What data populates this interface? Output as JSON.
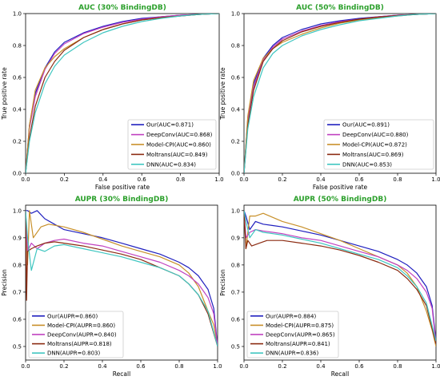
{
  "figure": {
    "panels": [
      {
        "id": "roc30",
        "title": "AUC (30% BindingDB)",
        "xlabel": "False positive rate",
        "ylabel": "True positive rate"
      },
      {
        "id": "roc50",
        "title": "AUC (50% BindingDB)",
        "xlabel": "False positive rate",
        "ylabel": "True positive rate"
      },
      {
        "id": "pr30",
        "title": "AUPR (30% BindingDB)",
        "xlabel": "Recall",
        "ylabel": "Precision"
      },
      {
        "id": "pr50",
        "title": "AUPR (50% BindingDB)",
        "xlabel": "Recall",
        "ylabel": "Precision"
      }
    ]
  },
  "colors": {
    "title": "#2ca02c",
    "our": "#1f1fbf",
    "deepconv": "#c040c0",
    "modelcpi": "#c8902a",
    "moltrans": "#8b2a10",
    "dnn": "#3fc6c0"
  },
  "chart_data": [
    {
      "type": "line",
      "title": "AUC (30% BindingDB)",
      "xlabel": "False positive rate",
      "ylabel": "True positive rate",
      "xlim": [
        0,
        1
      ],
      "ylim": [
        0,
        1
      ],
      "xticks": [
        "0.0",
        "0.2",
        "0.4",
        "0.6",
        "0.8",
        "1.0"
      ],
      "yticks": [
        "0.0",
        "0.2",
        "0.4",
        "0.6",
        "0.8",
        "1.0"
      ],
      "grid": false,
      "legend_position": "bottom-right",
      "series": [
        {
          "name": "Our(AUC=0.871)",
          "color_key": "our",
          "x": [
            0,
            0.02,
            0.05,
            0.1,
            0.15,
            0.2,
            0.3,
            0.4,
            0.5,
            0.6,
            0.7,
            0.8,
            0.9,
            1.0
          ],
          "y": [
            0,
            0.3,
            0.5,
            0.66,
            0.76,
            0.82,
            0.88,
            0.92,
            0.95,
            0.97,
            0.98,
            0.99,
            0.995,
            1.0
          ]
        },
        {
          "name": "DeepConv(AUC=0.868)",
          "color_key": "deepconv",
          "x": [
            0,
            0.02,
            0.05,
            0.1,
            0.15,
            0.2,
            0.3,
            0.4,
            0.5,
            0.6,
            0.7,
            0.8,
            0.9,
            1.0
          ],
          "y": [
            0,
            0.28,
            0.48,
            0.65,
            0.75,
            0.81,
            0.875,
            0.915,
            0.945,
            0.965,
            0.98,
            0.99,
            0.995,
            1.0
          ]
        },
        {
          "name": "Model-CPI(AUC=0.860)",
          "color_key": "modelcpi",
          "x": [
            0,
            0.02,
            0.05,
            0.1,
            0.15,
            0.2,
            0.3,
            0.4,
            0.5,
            0.6,
            0.7,
            0.8,
            0.9,
            1.0
          ],
          "y": [
            0,
            0.3,
            0.52,
            0.66,
            0.73,
            0.78,
            0.85,
            0.9,
            0.935,
            0.96,
            0.975,
            0.985,
            0.995,
            1.0
          ]
        },
        {
          "name": "Moltrans(AUC=0.849)",
          "color_key": "moltrans",
          "x": [
            0,
            0.02,
            0.05,
            0.1,
            0.15,
            0.2,
            0.3,
            0.4,
            0.5,
            0.6,
            0.7,
            0.8,
            0.9,
            1.0
          ],
          "y": [
            0,
            0.22,
            0.42,
            0.6,
            0.7,
            0.77,
            0.85,
            0.9,
            0.935,
            0.96,
            0.975,
            0.985,
            0.995,
            1.0
          ]
        },
        {
          "name": "DNN(AUC=0.834)",
          "color_key": "dnn",
          "x": [
            0,
            0.02,
            0.05,
            0.1,
            0.15,
            0.2,
            0.3,
            0.4,
            0.5,
            0.6,
            0.7,
            0.8,
            0.9,
            1.0
          ],
          "y": [
            0,
            0.2,
            0.38,
            0.56,
            0.67,
            0.74,
            0.82,
            0.88,
            0.92,
            0.95,
            0.97,
            0.985,
            0.995,
            1.0
          ]
        }
      ]
    },
    {
      "type": "line",
      "title": "AUC (50% BindingDB)",
      "xlabel": "False positive rate",
      "ylabel": "True positive rate",
      "xlim": [
        0,
        1
      ],
      "ylim": [
        0,
        1
      ],
      "xticks": [
        "0.0",
        "0.2",
        "0.4",
        "0.6",
        "0.8",
        "1.0"
      ],
      "yticks": [
        "0.0",
        "0.2",
        "0.4",
        "0.6",
        "0.8",
        "1.0"
      ],
      "grid": false,
      "legend_position": "bottom-right",
      "series": [
        {
          "name": "Our(AUC=0.891)",
          "color_key": "our",
          "x": [
            0,
            0.02,
            0.05,
            0.1,
            0.15,
            0.2,
            0.3,
            0.4,
            0.5,
            0.6,
            0.7,
            0.8,
            0.9,
            1.0
          ],
          "y": [
            0,
            0.35,
            0.56,
            0.72,
            0.8,
            0.85,
            0.9,
            0.935,
            0.955,
            0.97,
            0.98,
            0.99,
            0.995,
            1.0
          ]
        },
        {
          "name": "DeepConv(AUC=0.880)",
          "color_key": "deepconv",
          "x": [
            0,
            0.02,
            0.05,
            0.1,
            0.15,
            0.2,
            0.3,
            0.4,
            0.5,
            0.6,
            0.7,
            0.8,
            0.9,
            1.0
          ],
          "y": [
            0,
            0.33,
            0.54,
            0.71,
            0.79,
            0.84,
            0.89,
            0.925,
            0.95,
            0.965,
            0.98,
            0.99,
            0.995,
            1.0
          ]
        },
        {
          "name": "Model-CPI(AUC=0.872)",
          "color_key": "modelcpi",
          "x": [
            0,
            0.02,
            0.05,
            0.1,
            0.15,
            0.2,
            0.3,
            0.4,
            0.5,
            0.6,
            0.7,
            0.8,
            0.9,
            1.0
          ],
          "y": [
            0,
            0.36,
            0.58,
            0.72,
            0.78,
            0.82,
            0.87,
            0.91,
            0.94,
            0.96,
            0.975,
            0.985,
            0.995,
            1.0
          ]
        },
        {
          "name": "Moltrans(AUC=0.869)",
          "color_key": "moltrans",
          "x": [
            0,
            0.02,
            0.05,
            0.1,
            0.15,
            0.2,
            0.3,
            0.4,
            0.5,
            0.6,
            0.7,
            0.8,
            0.9,
            1.0
          ],
          "y": [
            0,
            0.3,
            0.52,
            0.7,
            0.78,
            0.83,
            0.885,
            0.92,
            0.945,
            0.965,
            0.978,
            0.988,
            0.995,
            1.0
          ]
        },
        {
          "name": "DNN(AUC=0.853)",
          "color_key": "dnn",
          "x": [
            0,
            0.02,
            0.05,
            0.1,
            0.15,
            0.2,
            0.3,
            0.4,
            0.5,
            0.6,
            0.7,
            0.8,
            0.9,
            1.0
          ],
          "y": [
            0,
            0.28,
            0.48,
            0.66,
            0.75,
            0.8,
            0.86,
            0.9,
            0.93,
            0.955,
            0.97,
            0.985,
            0.995,
            1.0
          ]
        }
      ]
    },
    {
      "type": "line",
      "title": "AUPR (30% BindingDB)",
      "xlabel": "Recall",
      "ylabel": "Precision",
      "xlim": [
        0,
        1
      ],
      "ylim": [
        0.45,
        1.02
      ],
      "xticks": [
        "0.0",
        "0.2",
        "0.4",
        "0.6",
        "0.8",
        "1.0"
      ],
      "yticks": [
        "0.5",
        "0.6",
        "0.7",
        "0.8",
        "0.9",
        "1.0"
      ],
      "grid": false,
      "legend_position": "bottom-left",
      "series": [
        {
          "name": "Our(AUPR=0.860)",
          "color_key": "our",
          "x": [
            0.0,
            0.01,
            0.03,
            0.06,
            0.1,
            0.15,
            0.2,
            0.3,
            0.4,
            0.5,
            0.6,
            0.7,
            0.8,
            0.85,
            0.9,
            0.95,
            0.98,
            1.0
          ],
          "y": [
            1.0,
            1.0,
            0.99,
            1.0,
            0.97,
            0.95,
            0.93,
            0.915,
            0.9,
            0.88,
            0.86,
            0.84,
            0.81,
            0.79,
            0.76,
            0.71,
            0.64,
            0.5
          ]
        },
        {
          "name": "Model-CPI(AUPR=0.860)",
          "color_key": "modelcpi",
          "x": [
            0.0,
            0.01,
            0.02,
            0.04,
            0.08,
            0.12,
            0.2,
            0.3,
            0.4,
            0.5,
            0.6,
            0.7,
            0.8,
            0.85,
            0.9,
            0.95,
            0.98,
            1.0
          ],
          "y": [
            1.0,
            0.8,
            1.0,
            0.9,
            0.94,
            0.95,
            0.94,
            0.92,
            0.895,
            0.87,
            0.85,
            0.83,
            0.8,
            0.77,
            0.72,
            0.63,
            0.58,
            0.5
          ]
        },
        {
          "name": "DeepConv(AUPR=0.840)",
          "color_key": "deepconv",
          "x": [
            0.0,
            0.01,
            0.03,
            0.06,
            0.1,
            0.15,
            0.2,
            0.3,
            0.4,
            0.5,
            0.6,
            0.7,
            0.8,
            0.85,
            0.9,
            0.95,
            0.98,
            1.0
          ],
          "y": [
            1.0,
            0.85,
            0.88,
            0.86,
            0.88,
            0.89,
            0.895,
            0.88,
            0.87,
            0.85,
            0.83,
            0.81,
            0.78,
            0.76,
            0.73,
            0.68,
            0.62,
            0.5
          ]
        },
        {
          "name": "Moltrans(AUPR=0.818)",
          "color_key": "moltrans",
          "x": [
            0.0,
            0.005,
            0.01,
            0.03,
            0.06,
            0.1,
            0.15,
            0.2,
            0.3,
            0.4,
            0.5,
            0.6,
            0.7,
            0.8,
            0.85,
            0.9,
            0.95,
            1.0
          ],
          "y": [
            1.0,
            0.67,
            0.85,
            0.86,
            0.87,
            0.88,
            0.885,
            0.88,
            0.87,
            0.855,
            0.84,
            0.82,
            0.79,
            0.76,
            0.73,
            0.69,
            0.62,
            0.5
          ]
        },
        {
          "name": "DNN(AUPR=0.803)",
          "color_key": "dnn",
          "x": [
            0.0,
            0.01,
            0.03,
            0.06,
            0.1,
            0.15,
            0.2,
            0.3,
            0.4,
            0.5,
            0.6,
            0.7,
            0.8,
            0.85,
            0.9,
            0.95,
            1.0
          ],
          "y": [
            1.0,
            0.9,
            0.78,
            0.86,
            0.85,
            0.87,
            0.875,
            0.86,
            0.845,
            0.83,
            0.81,
            0.79,
            0.76,
            0.73,
            0.69,
            0.63,
            0.5
          ]
        }
      ]
    },
    {
      "type": "line",
      "title": "AUPR (50% BindingDB)",
      "xlabel": "Recall",
      "ylabel": "Precision",
      "xlim": [
        0,
        1
      ],
      "ylim": [
        0.45,
        1.02
      ],
      "xticks": [
        "0.0",
        "0.2",
        "0.4",
        "0.6",
        "0.8",
        "1.0"
      ],
      "yticks": [
        "0.5",
        "0.6",
        "0.7",
        "0.8",
        "0.9",
        "1.0"
      ],
      "grid": false,
      "legend_position": "bottom-left",
      "series": [
        {
          "name": "Our(AUPR=0.884)",
          "color_key": "our",
          "x": [
            0.0,
            0.01,
            0.03,
            0.06,
            0.1,
            0.15,
            0.2,
            0.3,
            0.4,
            0.5,
            0.6,
            0.7,
            0.8,
            0.85,
            0.9,
            0.95,
            0.98,
            1.0
          ],
          "y": [
            1.0,
            0.98,
            0.93,
            0.96,
            0.95,
            0.945,
            0.94,
            0.925,
            0.91,
            0.89,
            0.87,
            0.85,
            0.82,
            0.8,
            0.77,
            0.72,
            0.65,
            0.52
          ]
        },
        {
          "name": "Model-CPI(AUPR=0.875)",
          "color_key": "modelcpi",
          "x": [
            0.0,
            0.01,
            0.03,
            0.06,
            0.1,
            0.15,
            0.2,
            0.3,
            0.4,
            0.5,
            0.6,
            0.7,
            0.8,
            0.85,
            0.9,
            0.95,
            0.98,
            1.0
          ],
          "y": [
            1.0,
            0.86,
            0.98,
            0.98,
            0.99,
            0.975,
            0.96,
            0.94,
            0.915,
            0.89,
            0.86,
            0.83,
            0.8,
            0.77,
            0.72,
            0.63,
            0.56,
            0.5
          ]
        },
        {
          "name": "DeepConv(AUPR=0.865)",
          "color_key": "deepconv",
          "x": [
            0.0,
            0.01,
            0.03,
            0.06,
            0.1,
            0.15,
            0.2,
            0.3,
            0.4,
            0.5,
            0.6,
            0.7,
            0.8,
            0.85,
            0.9,
            0.95,
            0.98,
            1.0
          ],
          "y": [
            1.0,
            0.9,
            0.92,
            0.93,
            0.925,
            0.92,
            0.915,
            0.9,
            0.89,
            0.87,
            0.85,
            0.83,
            0.8,
            0.78,
            0.75,
            0.7,
            0.64,
            0.51
          ]
        },
        {
          "name": "Moltrans(AUPR=0.841)",
          "color_key": "moltrans",
          "x": [
            0.0,
            0.01,
            0.02,
            0.04,
            0.08,
            0.12,
            0.2,
            0.3,
            0.4,
            0.5,
            0.6,
            0.7,
            0.8,
            0.85,
            0.9,
            0.95,
            1.0
          ],
          "y": [
            1.0,
            0.86,
            0.89,
            0.87,
            0.88,
            0.89,
            0.89,
            0.88,
            0.87,
            0.855,
            0.835,
            0.81,
            0.78,
            0.75,
            0.71,
            0.65,
            0.51
          ]
        },
        {
          "name": "DNN(AUPR=0.836)",
          "color_key": "dnn",
          "x": [
            0.0,
            0.01,
            0.03,
            0.06,
            0.1,
            0.15,
            0.2,
            0.3,
            0.4,
            0.5,
            0.6,
            0.7,
            0.8,
            0.85,
            0.9,
            0.95,
            1.0
          ],
          "y": [
            1.0,
            0.96,
            0.9,
            0.93,
            0.92,
            0.915,
            0.91,
            0.895,
            0.88,
            0.86,
            0.84,
            0.82,
            0.79,
            0.76,
            0.72,
            0.66,
            0.52
          ]
        }
      ]
    }
  ]
}
